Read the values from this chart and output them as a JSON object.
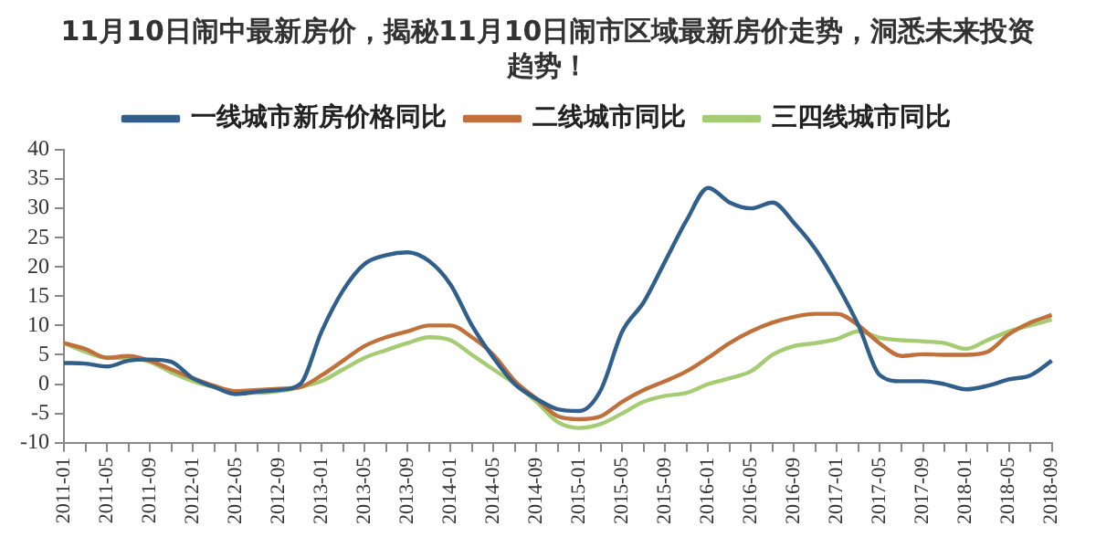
{
  "chart_data": {
    "type": "line",
    "title": "11月10日闹中最新房价，揭秘11月10日闹市区域最新房价走势，洞悉未来投资趋势！",
    "categories": [
      "2011-01",
      null,
      "2011-05",
      null,
      "2011-09",
      null,
      "2012-01",
      null,
      "2012-05",
      null,
      "2012-09",
      null,
      "2013-01",
      null,
      "2013-05",
      null,
      "2013-09",
      null,
      "2014-01",
      null,
      "2014-05",
      null,
      "2014-09",
      null,
      "2015-01",
      null,
      "2015-05",
      null,
      "2015-09",
      null,
      "2016-01",
      null,
      "2016-05",
      null,
      "2016-09",
      null,
      "2017-01",
      null,
      "2017-05",
      null,
      "2017-09",
      null,
      "2018-01",
      null,
      "2018-05",
      null,
      "2018-09"
    ],
    "series": [
      {
        "name": "一线城市新房价格同比",
        "color": "#2f5f8a",
        "values": [
          3.6,
          3.5,
          3,
          4,
          4.2,
          3.8,
          1,
          -0.5,
          -1.7,
          -1.3,
          -1,
          0,
          9,
          16,
          20.5,
          22,
          22.5,
          21,
          17,
          10,
          4.5,
          0,
          -2.5,
          -4.3,
          -4.6,
          -1,
          9,
          14,
          21,
          28,
          33.5,
          31,
          30,
          31,
          27.5,
          23,
          17,
          10,
          1.5,
          0.5,
          0.5,
          0,
          -0.9,
          -0.3,
          0.8,
          1.5,
          4
        ]
      },
      {
        "name": "二线城市同比",
        "color": "#c0703a",
        "values": [
          7,
          6,
          4.5,
          4.8,
          4,
          2.5,
          1,
          -0.3,
          -1.2,
          -1,
          -0.8,
          -0.5,
          1.5,
          4,
          6.5,
          8,
          9,
          10,
          10,
          8,
          5,
          0.5,
          -2.5,
          -5.5,
          -6,
          -5.5,
          -3,
          -1,
          0.5,
          2.2,
          4.5,
          7,
          9,
          10.5,
          11.5,
          12,
          12,
          10,
          6.9,
          4.8,
          5.1,
          5,
          5,
          5.5,
          8.5,
          10.5,
          11.8
        ]
      },
      {
        "name": "三四线城市同比",
        "color": "#a6cc73",
        "values": [
          7,
          5.5,
          4.5,
          4.5,
          3.8,
          2,
          0.5,
          -0.5,
          -1.3,
          -1.5,
          -1.2,
          -0.5,
          0.5,
          2.5,
          4.5,
          5.8,
          7,
          8,
          7.5,
          5,
          2.5,
          0,
          -3,
          -6.5,
          -7.5,
          -6.8,
          -5,
          -3,
          -2,
          -1.5,
          0,
          1,
          2.2,
          5,
          6.5,
          7,
          7.7,
          9,
          7.9,
          7.5,
          7.3,
          7,
          6,
          7.5,
          9,
          10,
          11
        ]
      }
    ],
    "ylim": [
      -10,
      40
    ],
    "yticks": [
      -10,
      -5,
      0,
      5,
      10,
      15,
      20,
      25,
      30,
      35,
      40
    ],
    "legend": "top",
    "marker": "none"
  }
}
